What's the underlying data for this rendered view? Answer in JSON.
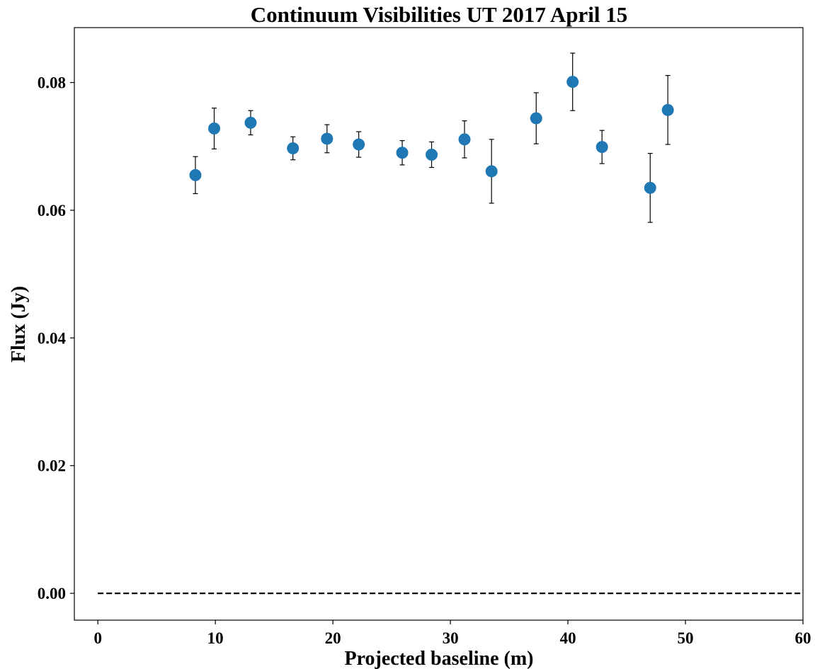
{
  "chart_data": {
    "type": "scatter",
    "title": "Continuum Visibilities UT 2017 April 15",
    "xlabel": "Projected baseline (m)",
    "ylabel": "Flux (Jy)",
    "xlim": [
      -2,
      60
    ],
    "ylim": [
      -0.0042,
      0.0886
    ],
    "xticks": [
      0,
      10,
      20,
      30,
      40,
      50,
      60
    ],
    "xtick_labels": [
      "0",
      "10",
      "20",
      "30",
      "40",
      "50",
      "60"
    ],
    "yticks": [
      0.0,
      0.02,
      0.04,
      0.06,
      0.08
    ],
    "ytick_labels": [
      "0.00",
      "0.02",
      "0.04",
      "0.06",
      "0.08"
    ],
    "grid": false,
    "marker_color": "#1f77b4",
    "errorbar_color": "#000000",
    "reference_line": {
      "y": 0.0,
      "style": "dashed",
      "color": "#000000"
    },
    "points": [
      {
        "x": 8.3,
        "y": 0.0655,
        "err": 0.0029
      },
      {
        "x": 9.9,
        "y": 0.0728,
        "err": 0.0032
      },
      {
        "x": 13.0,
        "y": 0.0737,
        "err": 0.0019
      },
      {
        "x": 16.6,
        "y": 0.0697,
        "err": 0.0018
      },
      {
        "x": 19.5,
        "y": 0.0712,
        "err": 0.0022
      },
      {
        "x": 22.2,
        "y": 0.0703,
        "err": 0.002
      },
      {
        "x": 25.9,
        "y": 0.069,
        "err": 0.0019
      },
      {
        "x": 28.4,
        "y": 0.0687,
        "err": 0.002
      },
      {
        "x": 31.2,
        "y": 0.0711,
        "err": 0.0029
      },
      {
        "x": 33.5,
        "y": 0.0661,
        "err": 0.005
      },
      {
        "x": 37.3,
        "y": 0.0744,
        "err": 0.004
      },
      {
        "x": 40.4,
        "y": 0.0801,
        "err": 0.0045
      },
      {
        "x": 42.9,
        "y": 0.0699,
        "err": 0.0026
      },
      {
        "x": 47.0,
        "y": 0.0635,
        "err": 0.0054
      },
      {
        "x": 48.5,
        "y": 0.0757,
        "err": 0.0054
      }
    ]
  }
}
